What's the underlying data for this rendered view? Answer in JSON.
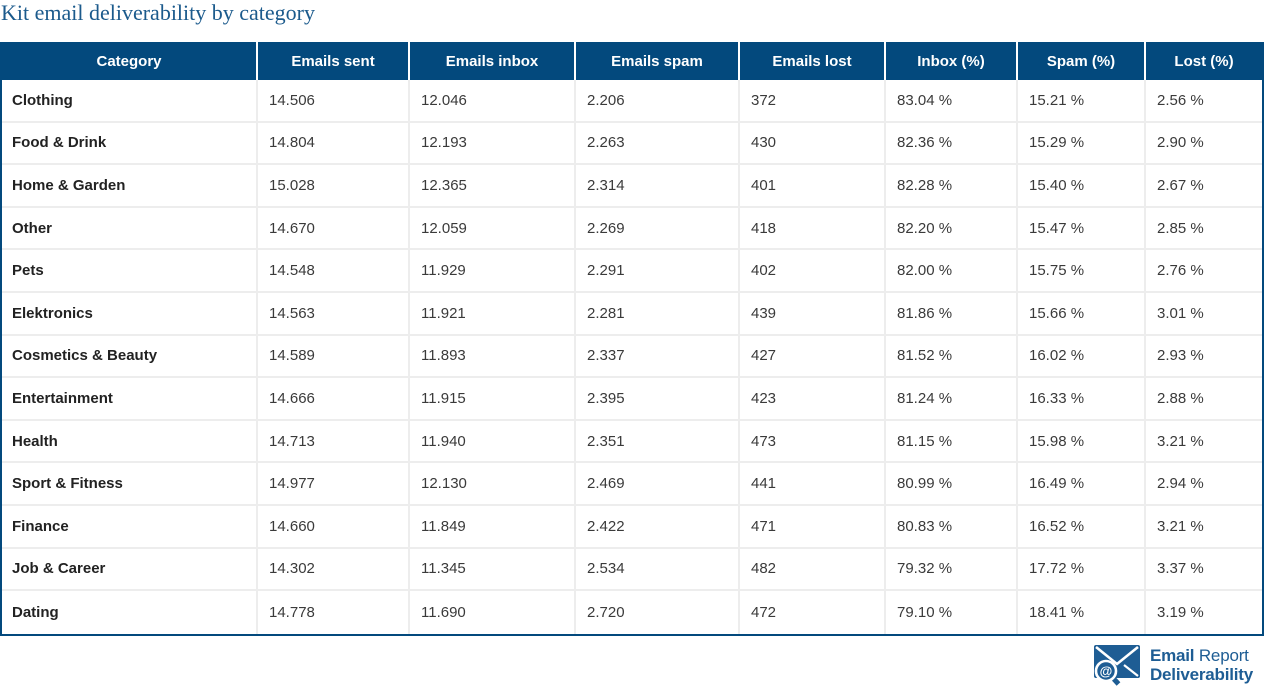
{
  "page": {
    "title": "Kit email deliverability by category"
  },
  "chart_data": {
    "type": "table",
    "title": "Kit email deliverability by category",
    "columns": [
      "Category",
      "Emails sent",
      "Emails inbox",
      "Emails spam",
      "Emails lost",
      "Inbox (%)",
      "Spam (%)",
      "Lost (%)"
    ],
    "rows": [
      [
        "Clothing",
        "14.506",
        "12.046",
        "2.206",
        "372",
        "83.04 %",
        "15.21 %",
        "2.56 %"
      ],
      [
        "Food & Drink",
        "14.804",
        "12.193",
        "2.263",
        "430",
        "82.36 %",
        "15.29 %",
        "2.90 %"
      ],
      [
        "Home & Garden",
        "15.028",
        "12.365",
        "2.314",
        "401",
        "82.28 %",
        "15.40 %",
        "2.67 %"
      ],
      [
        "Other",
        "14.670",
        "12.059",
        "2.269",
        "418",
        "82.20 %",
        "15.47 %",
        "2.85 %"
      ],
      [
        "Pets",
        "14.548",
        "11.929",
        "2.291",
        "402",
        "82.00 %",
        "15.75 %",
        "2.76 %"
      ],
      [
        "Elektronics",
        "14.563",
        "11.921",
        "2.281",
        "439",
        "81.86 %",
        "15.66 %",
        "3.01 %"
      ],
      [
        "Cosmetics & Beauty",
        "14.589",
        "11.893",
        "2.337",
        "427",
        "81.52 %",
        "16.02 %",
        "2.93 %"
      ],
      [
        "Entertainment",
        "14.666",
        "11.915",
        "2.395",
        "423",
        "81.24 %",
        "16.33 %",
        "2.88 %"
      ],
      [
        "Health",
        "14.713",
        "11.940",
        "2.351",
        "473",
        "81.15 %",
        "15.98 %",
        "3.21 %"
      ],
      [
        "Sport & Fitness",
        "14.977",
        "12.130",
        "2.469",
        "441",
        "80.99 %",
        "16.49 %",
        "2.94 %"
      ],
      [
        "Finance",
        "14.660",
        "11.849",
        "2.422",
        "471",
        "80.83 %",
        "16.52 %",
        "3.21 %"
      ],
      [
        "Job & Career",
        "14.302",
        "11.345",
        "2.534",
        "482",
        "79.32 %",
        "17.72 %",
        "3.37 %"
      ],
      [
        "Dating",
        "14.778",
        "11.690",
        "2.720",
        "472",
        "79.10 %",
        "18.41 %",
        "3.19 %"
      ]
    ]
  },
  "logo": {
    "line1_bold": "Email",
    "line1_light": "Report",
    "line2_bold": "Deliverability",
    "icon": "envelope-magnifier-at-icon"
  },
  "colors": {
    "header_bg": "#03497d",
    "table_border": "#03497d",
    "row_divider": "#ededed",
    "title_text": "#1b5a8c",
    "logo_text": "#1e5d94",
    "body_text": "#3a3a3a"
  }
}
